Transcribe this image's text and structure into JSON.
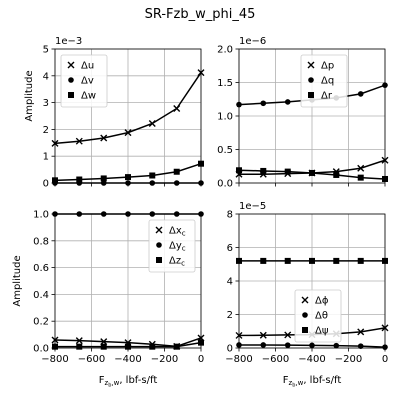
{
  "title": "SR-Fzb_w_phi_45",
  "chart_data": [
    {
      "type": "line",
      "ylabel": "Amplitude",
      "xlabel": "",
      "ylim": [
        0,
        5
      ],
      "yticks": [
        "0",
        "1",
        "2",
        "3",
        "4",
        "5"
      ],
      "yscale_label": "1e−3",
      "xlim": [
        -800,
        0
      ],
      "xticks": [
        "−800",
        "−600",
        "−400",
        "−200",
        "0"
      ],
      "x": [
        -800,
        -667,
        -533,
        -400,
        -267,
        -133,
        0
      ],
      "legend_loc": "upper-left",
      "series": [
        {
          "name": "Δu",
          "marker": "x",
          "values": [
            1.48,
            1.56,
            1.68,
            1.88,
            2.22,
            2.78,
            4.12
          ]
        },
        {
          "name": "Δv",
          "marker": "o",
          "values": [
            0.0,
            0.0,
            0.0,
            0.0,
            0.0,
            0.0,
            0.0
          ]
        },
        {
          "name": "Δw",
          "marker": "s",
          "values": [
            0.1,
            0.13,
            0.17,
            0.22,
            0.28,
            0.42,
            0.72
          ]
        }
      ]
    },
    {
      "type": "line",
      "ylabel": "",
      "xlabel": "",
      "ylim": [
        0,
        2
      ],
      "yticks": [
        "0.0",
        "0.5",
        "1.0",
        "1.5",
        "2.0"
      ],
      "yscale_label": "1e−6",
      "xlim": [
        -800,
        0
      ],
      "xticks": [
        "−800",
        "−600",
        "−400",
        "−200",
        "0"
      ],
      "x": [
        -800,
        -667,
        -533,
        -400,
        -267,
        -133,
        0
      ],
      "legend_loc": "upper-center",
      "series": [
        {
          "name": "Δp",
          "marker": "x",
          "values": [
            0.13,
            0.13,
            0.14,
            0.15,
            0.17,
            0.22,
            0.34
          ]
        },
        {
          "name": "Δq",
          "marker": "o",
          "values": [
            1.17,
            1.19,
            1.21,
            1.24,
            1.27,
            1.33,
            1.46
          ]
        },
        {
          "name": "Δr",
          "marker": "s",
          "values": [
            0.19,
            0.18,
            0.17,
            0.15,
            0.12,
            0.08,
            0.06
          ]
        }
      ]
    },
    {
      "type": "line",
      "ylabel": "Amplitude",
      "xlabel": "F_{z_b,w}, lbf-s/ft",
      "ylim": [
        0,
        1
      ],
      "yticks": [
        "0.0",
        "0.2",
        "0.4",
        "0.6",
        "0.8",
        "1.0"
      ],
      "yscale_label": "",
      "xlim": [
        -800,
        0
      ],
      "xticks": [
        "−800",
        "−600",
        "−400",
        "−200",
        "0"
      ],
      "x": [
        -800,
        -667,
        -533,
        -400,
        -267,
        -133,
        0
      ],
      "legend_loc": "center-right",
      "series": [
        {
          "name": "Δx_c",
          "marker": "x",
          "values": [
            0.06,
            0.055,
            0.048,
            0.04,
            0.028,
            0.012,
            0.075
          ]
        },
        {
          "name": "Δy_c",
          "marker": "o",
          "values": [
            1.0,
            1.0,
            1.0,
            1.0,
            1.0,
            1.0,
            1.0
          ]
        },
        {
          "name": "Δz_c",
          "marker": "s",
          "values": [
            0.01,
            0.01,
            0.01,
            0.01,
            0.01,
            0.01,
            0.04
          ]
        }
      ]
    },
    {
      "type": "line",
      "ylabel": "",
      "xlabel": "F_{z_b,w}, lbf-s/ft",
      "ylim": [
        0,
        8
      ],
      "yticks": [
        "0",
        "2",
        "4",
        "6",
        "8"
      ],
      "yscale_label": "1e−5",
      "xlim": [
        -800,
        0
      ],
      "xticks": [
        "−800",
        "−600",
        "−400",
        "−200",
        "0"
      ],
      "x": [
        -800,
        -667,
        -533,
        -400,
        -267,
        -133,
        0
      ],
      "legend_loc": "lower-center",
      "series": [
        {
          "name": "Δϕ",
          "marker": "x",
          "values": [
            0.75,
            0.76,
            0.78,
            0.8,
            0.85,
            0.96,
            1.2
          ]
        },
        {
          "name": "Δθ",
          "marker": "o",
          "values": [
            0.18,
            0.18,
            0.17,
            0.16,
            0.14,
            0.11,
            0.05
          ]
        },
        {
          "name": "Δψ",
          "marker": "s",
          "values": [
            5.2,
            5.2,
            5.2,
            5.2,
            5.2,
            5.2,
            5.2
          ]
        }
      ]
    }
  ]
}
